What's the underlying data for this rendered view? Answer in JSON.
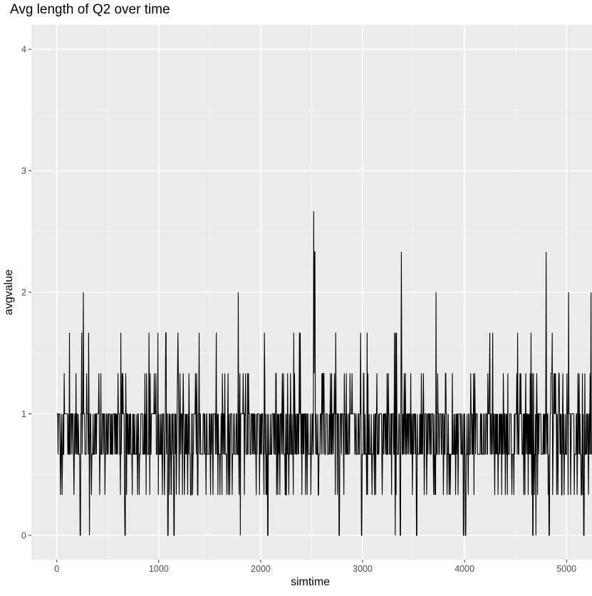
{
  "chart_data": {
    "type": "line",
    "title": "Avg length of Q2 over time",
    "xlabel": "simtime",
    "ylabel": "avgvalue",
    "xlim": [
      -250,
      5250
    ],
    "ylim": [
      -0.2,
      4.2
    ],
    "x_ticks": [
      0,
      1000,
      2000,
      3000,
      4000,
      5000
    ],
    "y_ticks": [
      0,
      1,
      2,
      3,
      4
    ],
    "x_tick_labels": [
      "0",
      "1000",
      "2000",
      "3000",
      "4000",
      "5000"
    ],
    "y_tick_labels": [
      "0",
      "1",
      "2",
      "3",
      "4"
    ],
    "grid": true,
    "theme": "gray panel, white gridlines",
    "series": [
      {
        "color": "#000000",
        "description_points": {
          "x_range": [
            0,
            5250
          ],
          "typical_range": [
            0.667,
            1.0
          ],
          "common_values": [
            0.333,
            0.667,
            1.0,
            1.333
          ],
          "peaks": [
            {
              "x": 260,
              "y": 2.0
            },
            {
              "x": 1070,
              "y": 1.667
            },
            {
              "x": 1780,
              "y": 2.0
            },
            {
              "x": 2520,
              "y": 2.667
            },
            {
              "x": 2530,
              "y": 2.333
            },
            {
              "x": 3380,
              "y": 2.333
            },
            {
              "x": 3720,
              "y": 2.0
            },
            {
              "x": 4800,
              "y": 2.333
            },
            {
              "x": 5020,
              "y": 2.0
            },
            {
              "x": 5240,
              "y": 2.0
            }
          ],
          "zeros": [
            230,
            320,
            670,
            1090,
            1150,
            1800,
            2070,
            2770,
            2990,
            3320,
            3370,
            3530,
            3990,
            4010,
            4670,
            4700,
            4830,
            5170
          ]
        }
      }
    ]
  }
}
